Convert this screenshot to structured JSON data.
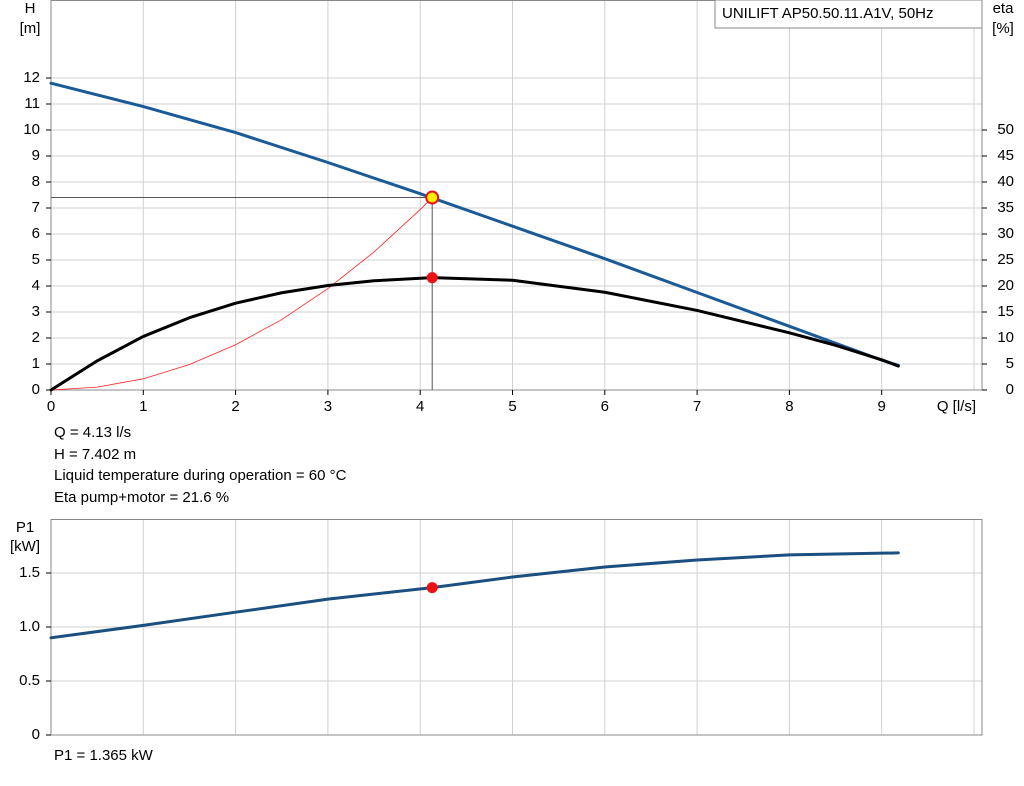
{
  "chart_data": [
    {
      "type": "line",
      "title": "UNILIFT AP50.50.11.A1V, 50Hz",
      "ylabel": "H",
      "yunit": "[m]",
      "y2label": "eta",
      "y2unit": "[%]",
      "xlabel": "Q [l/s]",
      "xlim": [
        0,
        10
      ],
      "xticks": [
        0,
        1,
        2,
        3,
        4,
        5,
        6,
        7,
        8,
        9
      ],
      "ylim": [
        0,
        15
      ],
      "yticks": [
        0,
        1,
        2,
        3,
        4,
        5,
        6,
        7,
        8,
        9,
        10,
        11,
        12
      ],
      "y2lim": [
        0,
        75
      ],
      "y2ticks": [
        0,
        5,
        10,
        15,
        20,
        25,
        30,
        35,
        40,
        45,
        50
      ],
      "grid": true,
      "series": [
        {
          "color": "#1a5a97",
          "x": [
            0,
            1,
            2,
            3,
            4,
            5,
            6,
            7,
            8,
            9,
            9.18
          ],
          "values": [
            11.8,
            10.9,
            9.9,
            8.75,
            7.55,
            6.3,
            5.05,
            3.75,
            2.45,
            1.15,
            0.95
          ]
        },
        {
          "color": "#000000",
          "axis": "y2",
          "x": [
            0,
            0.5,
            1,
            1.5,
            2,
            2.5,
            3,
            3.5,
            4.13,
            5,
            6,
            7,
            8,
            8.5,
            9,
            9.18
          ],
          "values": [
            0,
            5.6,
            10.3,
            13.9,
            16.7,
            18.7,
            20.1,
            21,
            21.6,
            21.1,
            18.8,
            15.3,
            11,
            8.6,
            5.8,
            4.6
          ]
        },
        {
          "color": "#ff2020",
          "x": [
            0,
            0.5,
            1,
            1.5,
            2,
            2.5,
            3,
            3.5,
            4,
            4.13
          ],
          "values": [
            0,
            0.11,
            0.43,
            0.98,
            1.74,
            2.71,
            3.9,
            5.31,
            6.94,
            7.402
          ]
        }
      ],
      "operating_point": {
        "x": 4.13,
        "y": 7.402,
        "eta": 21.6
      },
      "annotations": [
        "Q = 4.13 l/s",
        "H = 7.402 m",
        "Liquid temperature during operation = 60 °C",
        "Eta pump+motor = 21.6 %"
      ]
    },
    {
      "type": "line",
      "ylabel": "P1",
      "yunit": "[kW]",
      "xlim": [
        0,
        10
      ],
      "xticks": [
        0,
        1,
        2,
        3,
        4,
        5,
        6,
        7,
        8,
        9
      ],
      "ylim": [
        0,
        2
      ],
      "yticks": [
        0,
        0.5,
        {
          "value": 1,
          "label": "1.0"
        },
        1.5
      ],
      "grid": true,
      "series": [
        {
          "color": "#1a4f80",
          "x": [
            0,
            1,
            2,
            3,
            4.13,
            5,
            6,
            7,
            8,
            9.18
          ],
          "values": [
            0.9,
            1.015,
            1.137,
            1.258,
            1.365,
            1.463,
            1.556,
            1.62,
            1.668,
            1.686
          ]
        }
      ],
      "operating_point": {
        "x": 4.13,
        "y": 1.365
      },
      "annotations": [
        "P1 = 1.365 kW"
      ]
    }
  ]
}
